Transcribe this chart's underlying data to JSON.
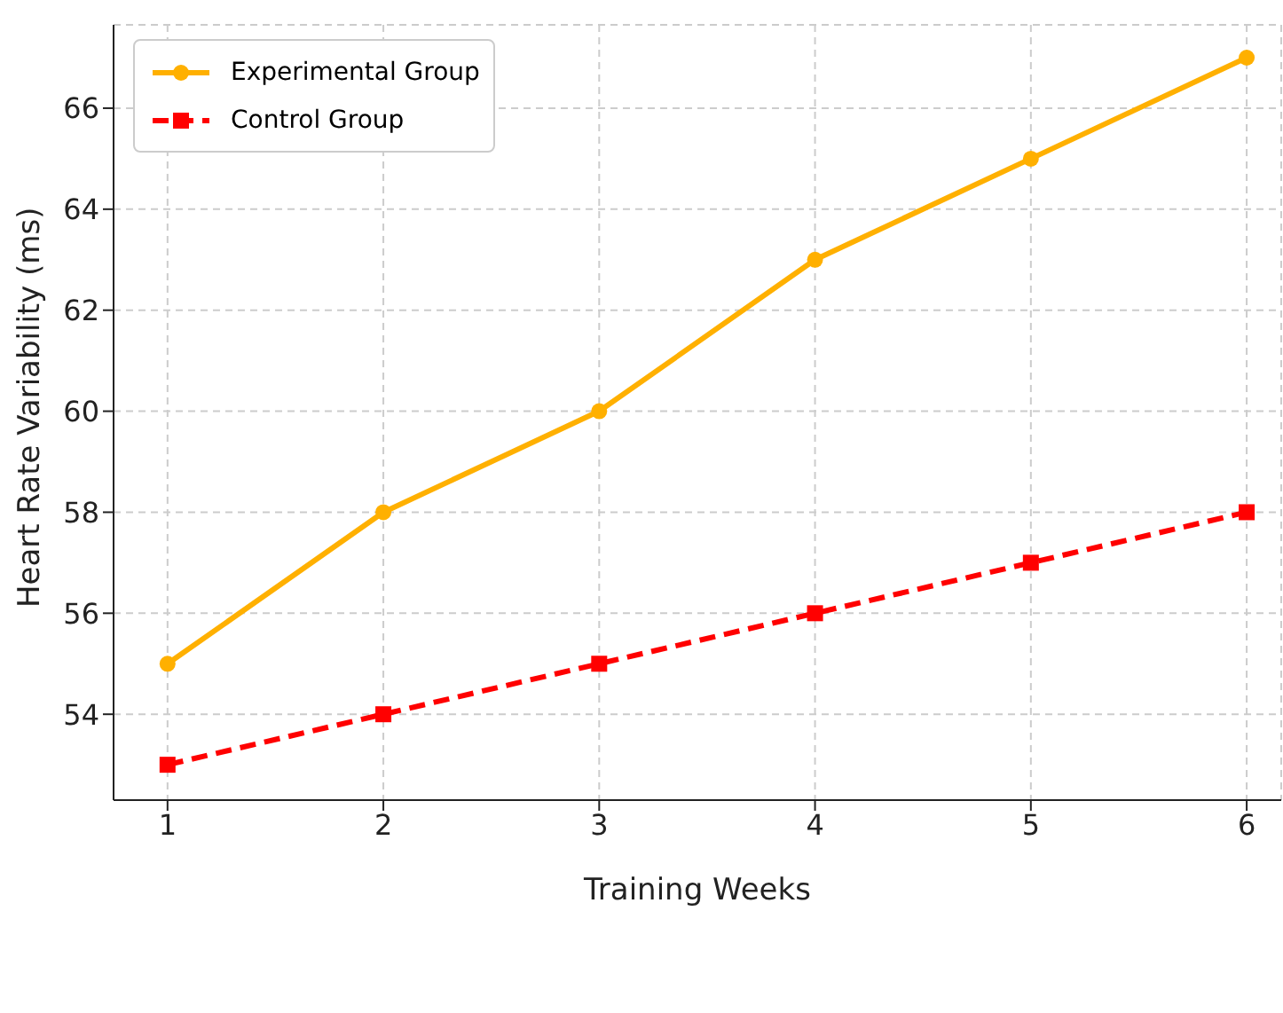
{
  "chart_data": {
    "type": "line",
    "xlabel": "Training Weeks",
    "ylabel": "Heart Rate Variability (ms)",
    "x": [
      1,
      2,
      3,
      4,
      5,
      6
    ],
    "series": [
      {
        "name": "Experimental Group",
        "color": "#ffb000",
        "values": [
          55,
          58,
          60,
          63,
          65,
          67
        ],
        "marker": "circle",
        "line_style": "solid"
      },
      {
        "name": "Control Group",
        "color": "#ff0000",
        "values": [
          53,
          54,
          55,
          56,
          57,
          58
        ],
        "marker": "square",
        "line_style": "dashed"
      }
    ],
    "xlim": [
      0.75,
      6.16
    ],
    "xticks": [
      1,
      2,
      3,
      4,
      5,
      6
    ],
    "ylim": [
      52.3,
      67.65
    ],
    "yticks": [
      54,
      56,
      58,
      60,
      62,
      64,
      66
    ],
    "grid": true,
    "legend": "top left"
  }
}
